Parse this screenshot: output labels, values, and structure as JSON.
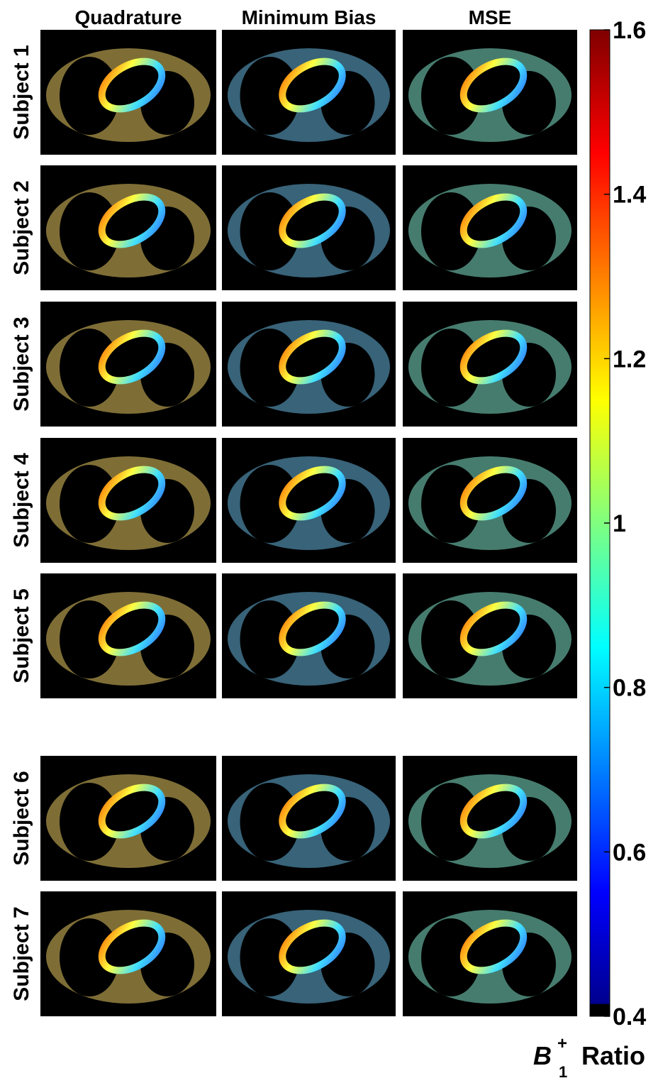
{
  "columns": [
    "Quadrature",
    "Minimum Bias",
    "MSE"
  ],
  "rows": [
    "Subject 1",
    "Subject 2",
    "Subject 3",
    "Subject 4",
    "Subject 5",
    "Subject 6",
    "Subject 7"
  ],
  "colorbar": {
    "range": [
      0.4,
      1.6
    ],
    "ticks": [
      0.4,
      0.6,
      0.8,
      1,
      1.2,
      1.4,
      1.6
    ],
    "label": {
      "symbol": "B",
      "superscript": "+",
      "subscript": "1",
      "text": "Ratio"
    }
  }
}
